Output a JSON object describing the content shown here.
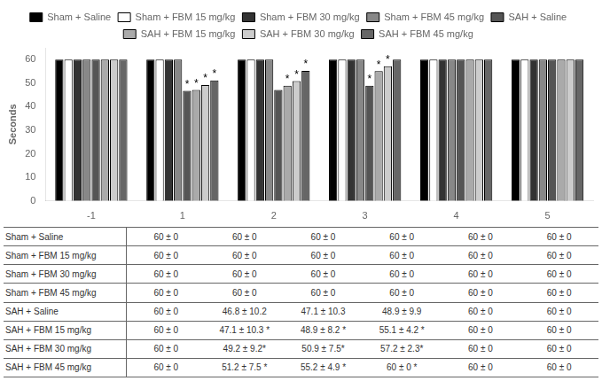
{
  "chart_data": {
    "type": "bar",
    "y_label": "Seconds",
    "categories": [
      "-1",
      "1",
      "2",
      "3",
      "4",
      "5"
    ],
    "series": [
      {
        "name": "Sham + Saline",
        "color": "#000000",
        "values": [
          60,
          60,
          60,
          60,
          60,
          60
        ]
      },
      {
        "name": "Sham + FBM 15 mg/kg",
        "color": "#ffffff",
        "values": [
          60,
          60,
          60,
          60,
          60,
          60
        ]
      },
      {
        "name": "Sham + FBM 30 mg/kg",
        "color": "#333333",
        "values": [
          60,
          60,
          60,
          60,
          60,
          60
        ]
      },
      {
        "name": "Sham + FBM 45 mg/kg",
        "color": "#888888",
        "values": [
          60,
          60,
          60,
          60,
          60,
          60
        ]
      },
      {
        "name": "SAH + Saline",
        "color": "#555555",
        "values": [
          60,
          46.8,
          47.1,
          48.9,
          60,
          60
        ]
      },
      {
        "name": "SAH + FBM 15 mg/kg",
        "color": "#aaaaaa",
        "values": [
          60,
          47.1,
          48.9,
          55.1,
          60,
          60
        ]
      },
      {
        "name": "SAH + FBM 30 mg/kg",
        "color": "#cccccc",
        "values": [
          60,
          49.2,
          50.9,
          57.2,
          60,
          60
        ]
      },
      {
        "name": "SAH + FBM 45 mg/kg",
        "color": "#666666",
        "values": [
          60,
          51.2,
          55.2,
          60,
          60,
          60
        ]
      }
    ],
    "ylim": [
      0,
      65
    ],
    "yticks": [
      0,
      10,
      20,
      30,
      40,
      50,
      60
    ],
    "grid": false,
    "legend": "top",
    "annotations": [
      {
        "text": "*",
        "category": "1",
        "series": "SAH + Saline"
      },
      {
        "text": "*",
        "category": "1",
        "series": "SAH + FBM 15 mg/kg"
      },
      {
        "text": "*",
        "category": "1",
        "series": "SAH + FBM 30 mg/kg"
      },
      {
        "text": "*",
        "category": "1",
        "series": "SAH + FBM 45 mg/kg"
      },
      {
        "text": "*",
        "category": "2",
        "series": "SAH + FBM 15 mg/kg"
      },
      {
        "text": "*",
        "category": "2",
        "series": "SAH + FBM 30 mg/kg"
      },
      {
        "text": "*",
        "category": "2",
        "series": "SAH + FBM 45 mg/kg"
      },
      {
        "text": "*",
        "category": "3",
        "series": "SAH + Saline"
      },
      {
        "text": "*",
        "category": "3",
        "series": "SAH + FBM 15 mg/kg"
      },
      {
        "text": "*",
        "category": "3",
        "series": "SAH + FBM 30 mg/kg"
      }
    ],
    "table": {
      "rows": [
        "Sham + Saline",
        "Sham + FBM 15 mg/kg",
        "Sham + FBM 30 mg/kg",
        "Sham + FBM 45 mg/kg",
        "SAH + Saline",
        "SAH + FBM 15 mg/kg",
        "SAH + FBM 30 mg/kg",
        "SAH + FBM 45 mg/kg"
      ],
      "cells": [
        [
          "60 ± 0",
          "60 ± 0",
          "60 ± 0",
          "60 ± 0",
          "60 ± 0",
          "60 ± 0"
        ],
        [
          "60 ± 0",
          "60 ± 0",
          "60 ± 0",
          "60 ± 0",
          "60 ± 0",
          "60 ± 0"
        ],
        [
          "60 ± 0",
          "60 ± 0",
          "60 ± 0",
          "60 ± 0",
          "60 ± 0",
          "60 ± 0"
        ],
        [
          "60 ± 0",
          "60 ± 0",
          "60 ± 0",
          "60 ± 0",
          "60 ± 0",
          "60 ± 0"
        ],
        [
          "60 ± 0",
          "46.8 ± 10.2",
          "47.1 ± 10.3",
          "48.9 ± 9.9",
          "60 ± 0",
          "60 ± 0"
        ],
        [
          "60 ± 0",
          "47.1 ± 10.3 *",
          "48.9 ± 8.2 *",
          "55.1 ± 4.2 *",
          "60 ± 0",
          "60 ± 0"
        ],
        [
          "60 ± 0",
          "49.2 ± 9.2*",
          "50.9 ± 7.5*",
          "57.2 ± 2.3*",
          "60 ± 0",
          "60 ± 0"
        ],
        [
          "60 ± 0",
          "51.2 ± 7.5 *",
          "55.2 ± 4.9 *",
          "60 ± 0 *",
          "60 ± 0",
          "60 ± 0"
        ]
      ]
    }
  }
}
